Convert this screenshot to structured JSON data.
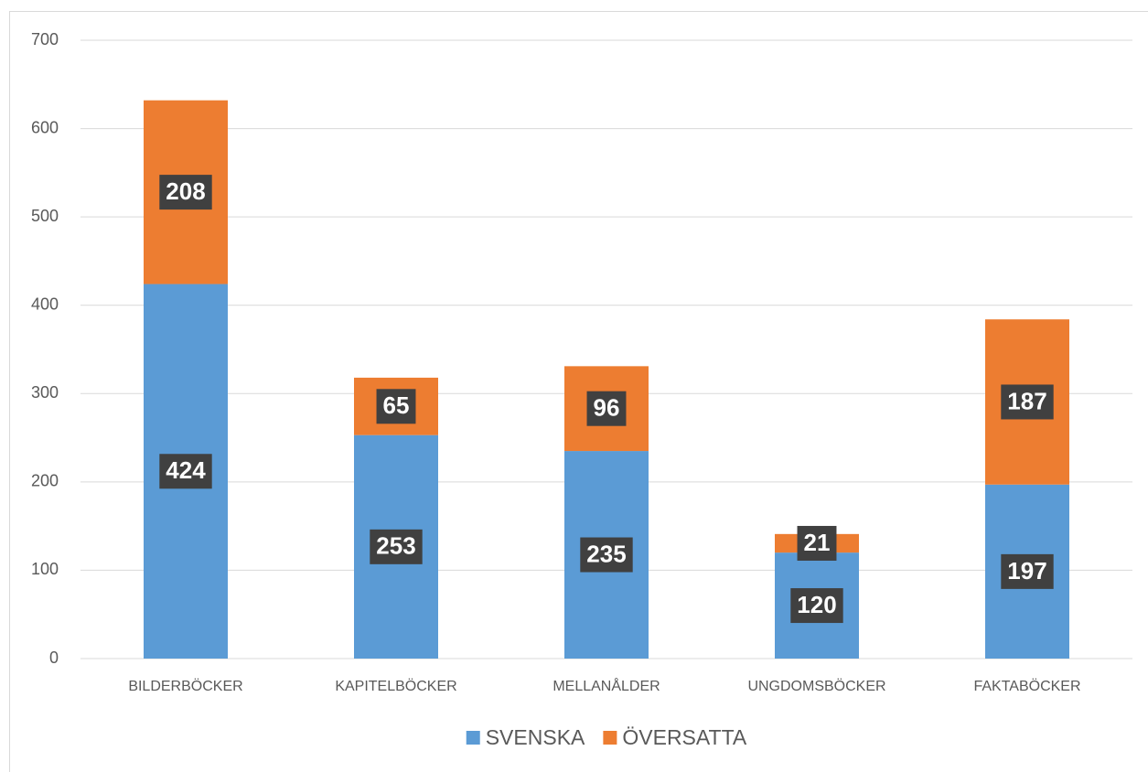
{
  "chart_data": {
    "type": "bar",
    "stacked": true,
    "categories": [
      "BILDERBÖCKER",
      "KAPITELBÖCKER",
      "MELLANÅLDER",
      "UNGDOMSBÖCKER",
      "FAKTABÖCKER"
    ],
    "series": [
      {
        "name": "SVENSKA",
        "color": "#5b9bd5",
        "values": [
          424,
          253,
          235,
          120,
          197
        ]
      },
      {
        "name": "ÖVERSATTA",
        "color": "#ed7d31",
        "values": [
          208,
          65,
          96,
          21,
          187
        ]
      }
    ],
    "ylim": [
      0,
      700
    ],
    "yticks": [
      0,
      100,
      200,
      300,
      400,
      500,
      600,
      700
    ],
    "grid": true,
    "legend": "bottom"
  }
}
